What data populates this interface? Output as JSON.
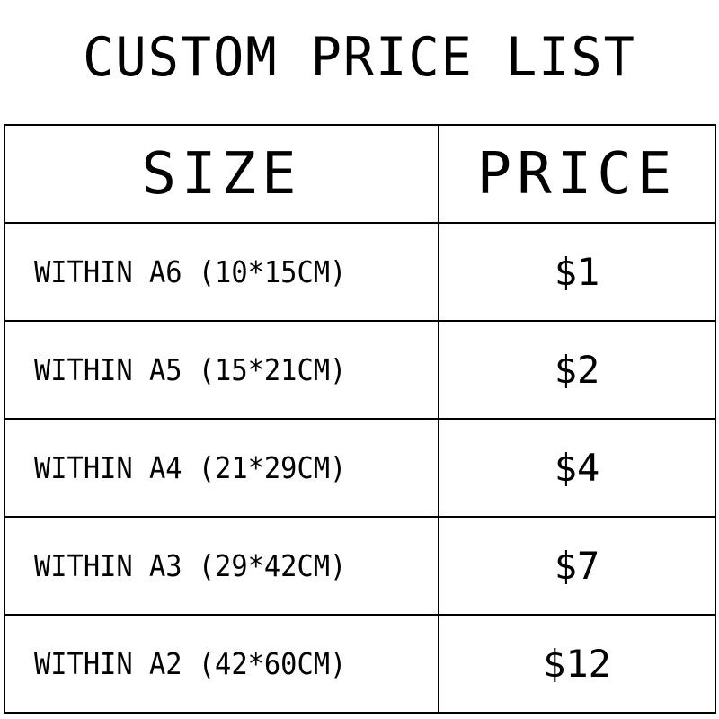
{
  "title": "CUSTOM PRICE LIST",
  "table": {
    "headers": [
      "SIZE",
      "PRICE"
    ],
    "rows": [
      {
        "size": "WITHIN A6 (10*15CM)",
        "price": "$1"
      },
      {
        "size": "WITHIN A5 (15*21CM)",
        "price": "$2"
      },
      {
        "size": "WITHIN A4 (21*29CM)",
        "price": "$4"
      },
      {
        "size": "WITHIN A3 (29*42CM)",
        "price": "$7"
      },
      {
        "size": "WITHIN A2 (42*60CM)",
        "price": "$12"
      }
    ]
  }
}
